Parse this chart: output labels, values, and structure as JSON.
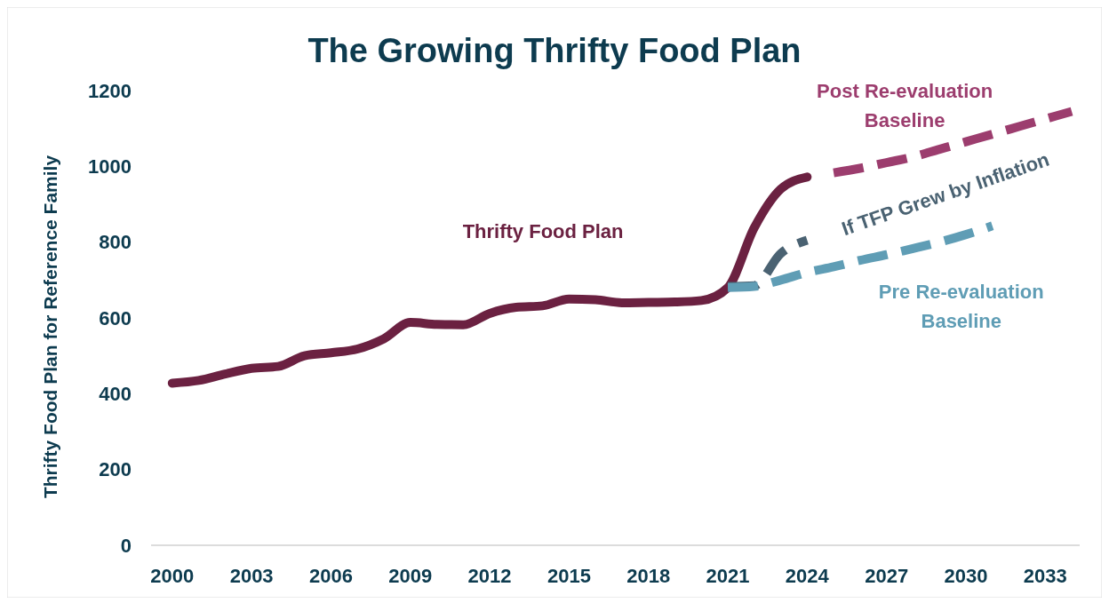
{
  "chart_data": {
    "type": "line",
    "title": "The Growing Thrifty Food Plan",
    "ylabel": "Thrifty Food Plan for Reference Family",
    "xlim": [
      1999.2,
      2034.3
    ],
    "xticks": [
      2000,
      2003,
      2006,
      2009,
      2012,
      2015,
      2018,
      2021,
      2024,
      2027,
      2030,
      2033
    ],
    "ylim": [
      0,
      1200
    ],
    "yticks": [
      0,
      200,
      400,
      600,
      800,
      1000,
      1200
    ],
    "grid": false,
    "series": [
      {
        "name": "Thrifty Food Plan",
        "color": "#6b2141",
        "line_style": "solid",
        "x": [
          2000,
          2001,
          2002,
          2003,
          2004,
          2005,
          2006,
          2007,
          2008,
          2009,
          2010,
          2011,
          2012,
          2013,
          2014,
          2015,
          2016,
          2017,
          2018,
          2019,
          2020,
          2021,
          2022,
          2023,
          2024
        ],
        "values": [
          428,
          435,
          452,
          467,
          472,
          500,
          508,
          518,
          545,
          588,
          583,
          582,
          612,
          628,
          632,
          650,
          648,
          640,
          641,
          642,
          646,
          680,
          838,
          940,
          972
        ]
      },
      {
        "name": "Post Re-evaluation Baseline",
        "color": "#9c3d6e",
        "line_style": "dashed",
        "x": [
          2025,
          2026,
          2027,
          2028,
          2029,
          2030,
          2031,
          2032,
          2033,
          2034
        ],
        "values": [
          983,
          995,
          1010,
          1025,
          1045,
          1065,
          1085,
          1105,
          1125,
          1145
        ]
      },
      {
        "name": "If TFP Grew by Inflation",
        "color": "#4a6272",
        "line_style": "dashed",
        "x": [
          2021,
          2022,
          2023,
          2024
        ],
        "values": [
          683,
          685,
          770,
          805
        ]
      },
      {
        "name": "Pre Re-evaluation Baseline",
        "color": "#5f9db5",
        "line_style": "dashed",
        "x": [
          2021,
          2022,
          2023,
          2024,
          2025,
          2026,
          2027,
          2028,
          2029,
          2030,
          2031
        ],
        "values": [
          680,
          683,
          700,
          720,
          735,
          752,
          767,
          783,
          800,
          820,
          843
        ]
      }
    ]
  }
}
